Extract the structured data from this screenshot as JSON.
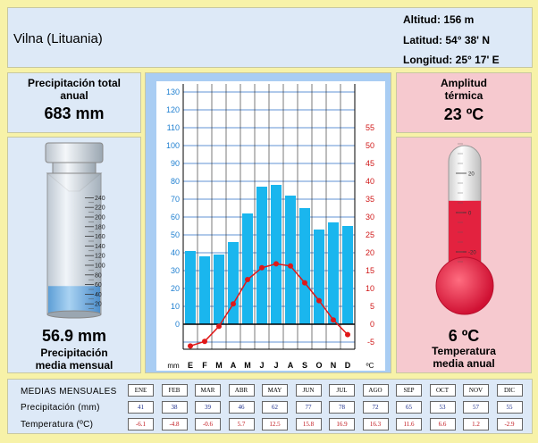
{
  "header": {
    "city": "Vilna (Lituania)",
    "altitud_label": "Altitud:",
    "altitud_value": "156 m",
    "latitud_label": "Latitud:",
    "latitud_value": "54° 38' N",
    "longitud_label": "Longitud:",
    "longitud_value": "25° 17' E"
  },
  "precip_total": {
    "label_line1": "Precipitación total",
    "label_line2": "anual",
    "value": "683 mm"
  },
  "precip_mean": {
    "value": "56.9 mm",
    "label_line1": "Precipitación",
    "label_line2": "media mensual"
  },
  "amplitude": {
    "label_line1": "Amplitud",
    "label_line2": "térmica",
    "value": "23 ºC"
  },
  "temp_mean": {
    "value": "6 ºC",
    "label_line1": "Temperatura",
    "label_line2": "media anual"
  },
  "cylinder": {
    "scale": [
      "240",
      "220",
      "200",
      "180",
      "160",
      "140",
      "120",
      "100",
      "80",
      "60",
      "40",
      "20"
    ],
    "fill_mm": 56.9
  },
  "thermometer": {
    "scale": [
      "60",
      "40",
      "20",
      "0",
      "-20"
    ],
    "fill_c": 6
  },
  "table": {
    "title": "MEDIAS MENSUALES",
    "precip_label": "Precipitación (mm)",
    "temp_label": "Temperatura (ºC)",
    "months": [
      "ENE",
      "FEB",
      "MAR",
      "ABR",
      "MAY",
      "JUN",
      "JUL",
      "AGO",
      "SEP",
      "OCT",
      "NOV",
      "DIC"
    ],
    "precip": [
      "41",
      "38",
      "39",
      "46",
      "62",
      "77",
      "78",
      "72",
      "65",
      "53",
      "57",
      "55"
    ],
    "temp": [
      "-6.1",
      "-4.8",
      "-0.6",
      "5.7",
      "12.5",
      "15.8",
      "16.9",
      "16.3",
      "11.6",
      "6.6",
      "1.2",
      "-2.9"
    ]
  },
  "chart_data": {
    "type": "bar",
    "categories": [
      "E",
      "F",
      "M",
      "A",
      "M",
      "J",
      "J",
      "A",
      "S",
      "O",
      "N",
      "D"
    ],
    "series": [
      {
        "values": [
          41,
          38,
          39,
          46,
          62,
          77,
          78,
          72,
          65,
          53,
          57,
          55
        ],
        "color": "#1ab6ee"
      },
      {
        "values": [
          -6.1,
          -4.8,
          -0.6,
          5.7,
          12.5,
          15.8,
          16.9,
          16.3,
          11.6,
          6.6,
          1.2,
          -2.9
        ],
        "color": "#e01818"
      }
    ],
    "xlabel_left": "mm",
    "xlabel_right": "ºC",
    "y_left_ticks": [
      "0",
      "10",
      "20",
      "30",
      "40",
      "50",
      "60",
      "70",
      "80",
      "90",
      "100",
      "110",
      "120",
      "130"
    ],
    "y_right_ticks": [
      "-5",
      "0",
      "5",
      "10",
      "15",
      "20",
      "25",
      "30",
      "35",
      "40",
      "45",
      "50",
      "55"
    ],
    "ylim_left": [
      -10,
      130
    ],
    "ylim_right": [
      -5,
      65
    ],
    "grid": true
  }
}
